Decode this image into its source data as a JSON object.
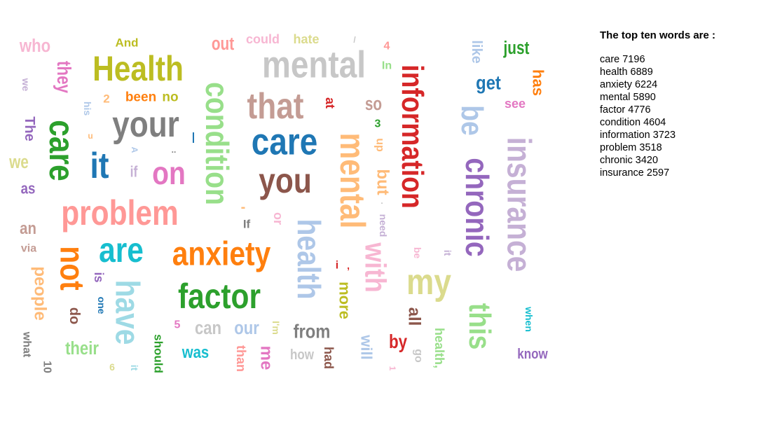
{
  "top_ten": {
    "title": "The top ten words are :",
    "items": [
      {
        "word": "care",
        "count": "7196"
      },
      {
        "word": "health",
        "count": "6889"
      },
      {
        "word": "anxiety",
        "count": "6224"
      },
      {
        "word": "mental",
        "count": "5890"
      },
      {
        "word": "factor",
        "count": "4776"
      },
      {
        "word": "condition",
        "count": "4604"
      },
      {
        "word": "information",
        "count": "3723"
      },
      {
        "word": "problem",
        "count": "3518"
      },
      {
        "word": "chronic",
        "count": "3420"
      },
      {
        "word": "insurance",
        "count": "2597"
      }
    ]
  },
  "cloud_words": [
    {
      "text": "who",
      "color": "#f7b6d2"
    },
    {
      "text": "And",
      "color": "#bcbd22"
    },
    {
      "text": "Health",
      "color": "#bcbd22"
    },
    {
      "text": "out",
      "color": "#ff9896"
    },
    {
      "text": "could",
      "color": "#f7b6d2"
    },
    {
      "text": "hate",
      "color": "#dbdb8d"
    },
    {
      "text": "mental",
      "color": "#c7c7c7"
    },
    {
      "text": "/",
      "color": "#c7c7c7"
    },
    {
      "text": "4",
      "color": "#ff9896"
    },
    {
      "text": "information",
      "color": "#d62728"
    },
    {
      "text": "like",
      "color": "#aec7e8"
    },
    {
      "text": "just",
      "color": "#2ca02c"
    },
    {
      "text": "In",
      "color": "#98df8a"
    },
    {
      "text": "has",
      "color": "#ff7f0e"
    },
    {
      "text": "they",
      "color": "#e377c2"
    },
    {
      "text": "we",
      "color": "#c5b0d5"
    },
    {
      "text": "get",
      "color": "#1f77b4"
    },
    {
      "text": "condition",
      "color": "#98df8a"
    },
    {
      "text": "that",
      "color": "#c49c94"
    },
    {
      "text": "so",
      "color": "#c49c94"
    },
    {
      "text": "at",
      "color": "#d62728"
    },
    {
      "text": "see",
      "color": "#e377c2"
    },
    {
      "text": "2",
      "color": "#ffbb78"
    },
    {
      "text": "been",
      "color": "#ff7f0e"
    },
    {
      "text": "no",
      "color": "#bcbd22"
    },
    {
      "text": "his",
      "color": "#aec7e8"
    },
    {
      "text": "your",
      "color": "#7f7f7f"
    },
    {
      "text": "care",
      "color": "#1f77b4"
    },
    {
      "text": "be",
      "color": "#aec7e8"
    },
    {
      "text": "chronic",
      "color": "#9467bd"
    },
    {
      "text": "insurance",
      "color": "#c5b0d5"
    },
    {
      "text": "The",
      "color": "#9467bd"
    },
    {
      "text": "care",
      "color": "#2ca02c"
    },
    {
      "text": "u",
      "color": "#ffbb78"
    },
    {
      "text": "3",
      "color": "#2ca02c"
    },
    {
      "text": "mental",
      "color": "#ffbb78"
    },
    {
      "text": "up",
      "color": "#ffbb78"
    },
    {
      "text": "|",
      "color": "#1f77b4"
    },
    {
      "text": "..",
      "color": "#7f7f7f"
    },
    {
      "text": "A",
      "color": "#aec7e8"
    },
    {
      "text": "it",
      "color": "#1f77b4"
    },
    {
      "text": "if",
      "color": "#c5b0d5"
    },
    {
      "text": "on",
      "color": "#e377c2"
    },
    {
      "text": "you",
      "color": "#8c564b"
    },
    {
      "text": "we",
      "color": "#dbdb8d"
    },
    {
      "text": "but",
      "color": "#ffbb78"
    },
    {
      "text": "as",
      "color": "#9467bd"
    },
    {
      "text": "problem",
      "color": "#ff9896"
    },
    {
      "text": "-",
      "color": "#ffbb78"
    },
    {
      "text": "health",
      "color": "#aec7e8"
    },
    {
      "text": ".",
      "color": "#c7c7c7"
    },
    {
      "text": "need",
      "color": "#c5b0d5"
    },
    {
      "text": "or",
      "color": "#f7b6d2"
    },
    {
      "text": "If",
      "color": "#7f7f7f"
    },
    {
      "text": "an",
      "color": "#c49c94"
    },
    {
      "text": "via",
      "color": "#c49c94"
    },
    {
      "text": "are",
      "color": "#17becf"
    },
    {
      "text": "not",
      "color": "#ff7f0e"
    },
    {
      "text": "anxiety",
      "color": "#ff7f0e"
    },
    {
      "text": "with",
      "color": "#f7b6d2"
    },
    {
      "text": "my",
      "color": "#dbdb8d"
    },
    {
      "text": "be",
      "color": "#f7b6d2"
    },
    {
      "text": "it",
      "color": "#c5b0d5"
    },
    {
      "text": "this",
      "color": "#98df8a"
    },
    {
      "text": "people",
      "color": "#ffbb78"
    },
    {
      "text": "is",
      "color": "#9467bd"
    },
    {
      "text": "have",
      "color": "#9edae5"
    },
    {
      "text": "i",
      "color": "#d62728"
    },
    {
      "text": ",",
      "color": "#d62728"
    },
    {
      "text": "more",
      "color": "#bcbd22"
    },
    {
      "text": "when",
      "color": "#17becf"
    },
    {
      "text": "factor",
      "color": "#2ca02c"
    },
    {
      "text": "one",
      "color": "#1f77b4"
    },
    {
      "text": "do",
      "color": "#8c564b"
    },
    {
      "text": "all",
      "color": "#8c564b"
    },
    {
      "text": "5",
      "color": "#e377c2"
    },
    {
      "text": "can",
      "color": "#c7c7c7"
    },
    {
      "text": "our",
      "color": "#aec7e8"
    },
    {
      "text": "I'm",
      "color": "#dbdb8d"
    },
    {
      "text": "from",
      "color": "#7f7f7f"
    },
    {
      "text": "will",
      "color": "#aec7e8"
    },
    {
      "text": "by",
      "color": "#d62728"
    },
    {
      "text": "health,",
      "color": "#98df8a"
    },
    {
      "text": "what",
      "color": "#7f7f7f"
    },
    {
      "text": "their",
      "color": "#98df8a"
    },
    {
      "text": "should",
      "color": "#2ca02c"
    },
    {
      "text": "was",
      "color": "#17becf"
    },
    {
      "text": "than",
      "color": "#ff9896"
    },
    {
      "text": "me",
      "color": "#e377c2"
    },
    {
      "text": "how",
      "color": "#c7c7c7"
    },
    {
      "text": "had",
      "color": "#8c564b"
    },
    {
      "text": "go",
      "color": "#c7c7c7"
    },
    {
      "text": "know",
      "color": "#9467bd"
    },
    {
      "text": "10",
      "color": "#7f7f7f"
    },
    {
      "text": "6",
      "color": "#dbdb8d"
    },
    {
      "text": "it",
      "color": "#9edae5"
    },
    {
      "text": "1",
      "color": "#f7b6d2"
    }
  ]
}
